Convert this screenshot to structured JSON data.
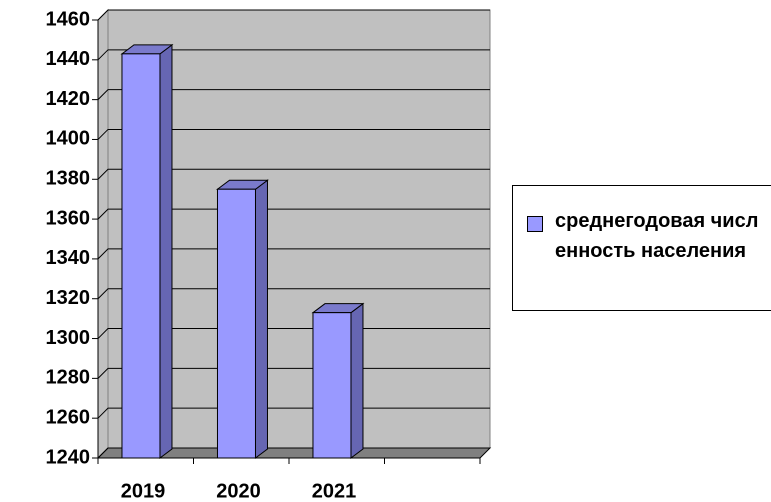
{
  "chart_data": {
    "type": "bar3d",
    "categories": [
      "2019",
      "2020",
      "2021",
      null
    ],
    "series": [
      {
        "name": "среднегодовая численность населения",
        "color": "#9999ff",
        "values": [
          1443,
          1375,
          1313,
          null
        ]
      }
    ],
    "ylim": [
      1240,
      1460
    ],
    "yticks": [
      1240,
      1260,
      1280,
      1300,
      1320,
      1340,
      1360,
      1380,
      1400,
      1420,
      1440,
      1460
    ],
    "grid": true,
    "legend": "right"
  }
}
